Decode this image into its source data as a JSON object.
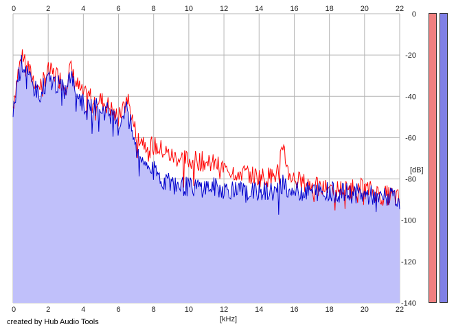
{
  "window": {
    "credit": "created by Hub Audio Tools"
  },
  "colors": {
    "background": "#ffffff",
    "grid": "#b4b4b4",
    "fill": "#c0c0fa",
    "left_channel": "#ff0000",
    "right_channel": "#0000cc",
    "meter_left": "#f08080",
    "meter_right": "#8080e6"
  },
  "chart_data": {
    "type": "line",
    "title": "",
    "xlabel": "[kHz]",
    "ylabel": "[dB]",
    "xlim": [
      0,
      22
    ],
    "ylim": [
      -140,
      0
    ],
    "x_ticks": [
      0,
      2,
      4,
      6,
      8,
      10,
      12,
      14,
      16,
      18,
      20,
      22
    ],
    "x_tick_labels": [
      "0",
      "2",
      "4",
      "6",
      "8",
      "10",
      "12",
      "14",
      "16",
      "18",
      "20",
      "22"
    ],
    "y_ticks": [
      0,
      -20,
      -40,
      -60,
      -80,
      -100,
      -120,
      -140
    ],
    "y_tick_labels": [
      "0",
      "-20",
      "-40",
      "-60",
      "-80",
      "-100",
      "-120",
      "-140"
    ],
    "grid": true,
    "legend": "none",
    "series": [
      {
        "color": "#ff0000",
        "x": [
          0,
          0.25,
          0.5,
          0.75,
          1,
          1.5,
          2,
          2.5,
          3,
          3.25,
          3.5,
          4,
          4.5,
          5,
          5.5,
          6,
          6.25,
          6.5,
          6.75,
          7,
          7.5,
          8,
          8.5,
          9,
          9.5,
          10,
          10.5,
          11,
          11.5,
          12,
          12.5,
          13,
          13.5,
          14,
          14.5,
          15,
          15.25,
          15.4,
          15.6,
          16,
          16.5,
          17,
          17.5,
          18,
          18.5,
          19,
          19.5,
          20,
          20.5,
          21,
          21.5,
          22
        ],
        "values": [
          -45,
          -30,
          -20,
          -22,
          -30,
          -35,
          -28,
          -30,
          -35,
          -26,
          -32,
          -40,
          -40,
          -42,
          -45,
          -52,
          -45,
          -40,
          -50,
          -58,
          -62,
          -64,
          -66,
          -69,
          -70,
          -71,
          -71,
          -72,
          -73,
          -75,
          -76,
          -77,
          -78,
          -79,
          -79,
          -78,
          -70,
          -62,
          -76,
          -80,
          -82,
          -83,
          -85,
          -84,
          -85,
          -85,
          -84,
          -85,
          -86,
          -88,
          -88,
          -90
        ]
      },
      {
        "color": "#0000cc",
        "x": [
          0,
          0.25,
          0.5,
          0.75,
          1,
          1.5,
          2,
          2.5,
          3,
          3.25,
          3.5,
          4,
          4.5,
          5,
          5.5,
          6,
          6.25,
          6.5,
          6.75,
          7,
          7.5,
          8,
          8.5,
          9,
          9.5,
          10,
          10.5,
          11,
          11.5,
          12,
          12.5,
          13,
          13.5,
          14,
          14.5,
          15,
          15.25,
          15.4,
          15.6,
          16,
          16.5,
          17,
          17.5,
          18,
          18.5,
          19,
          19.5,
          20,
          20.5,
          21,
          21.5,
          22
        ],
        "values": [
          -50,
          -32,
          -24,
          -26,
          -34,
          -38,
          -32,
          -34,
          -38,
          -30,
          -35,
          -44,
          -44,
          -46,
          -48,
          -55,
          -48,
          -45,
          -56,
          -66,
          -72,
          -76,
          -80,
          -82,
          -83,
          -84,
          -84,
          -84,
          -84,
          -85,
          -85,
          -86,
          -86,
          -86,
          -86,
          -86,
          -84,
          -80,
          -86,
          -86,
          -86,
          -86,
          -86,
          -86,
          -87,
          -87,
          -87,
          -88,
          -88,
          -89,
          -89,
          -90
        ]
      }
    ],
    "meters": [
      {
        "channel": "left",
        "level_db": 0
      },
      {
        "channel": "right",
        "level_db": 0
      }
    ]
  }
}
